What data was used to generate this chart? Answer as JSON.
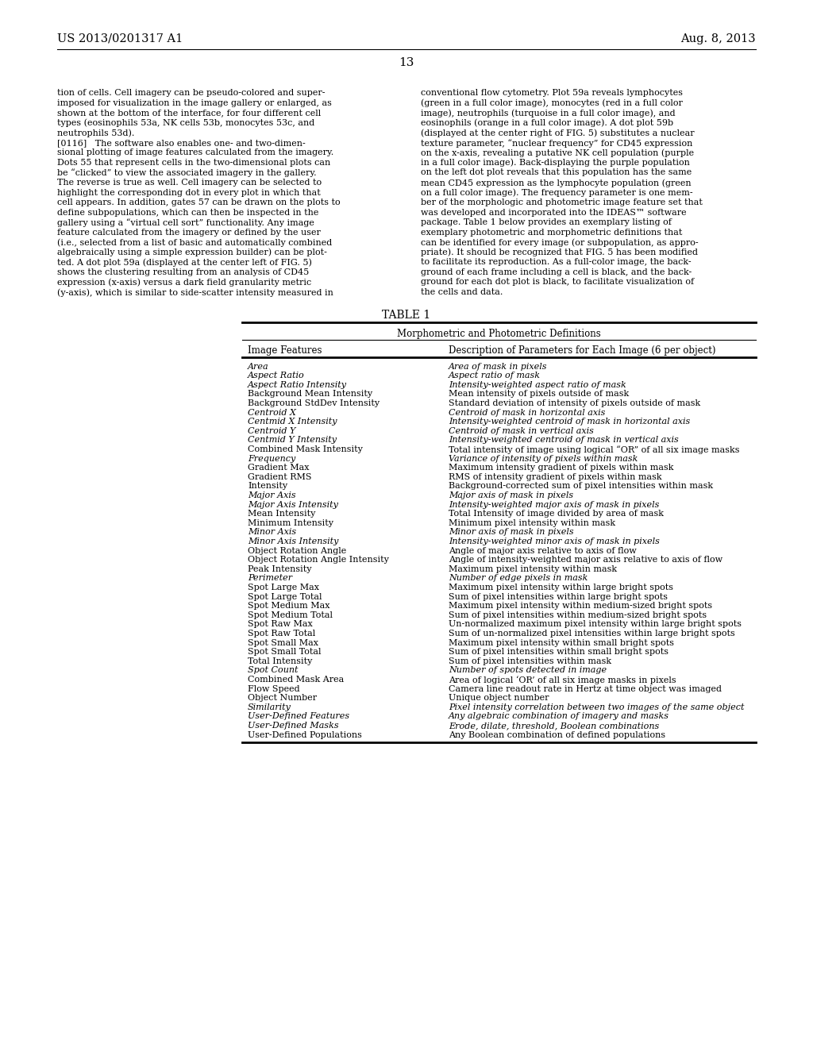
{
  "bg_color": "#ffffff",
  "header_left": "US 2013/0201317 A1",
  "header_right": "Aug. 8, 2013",
  "page_number": "13",
  "para_left_lines": [
    "tion of cells. Cell imagery can be pseudo-colored and super-",
    "imposed for visualization in the image gallery or enlarged, as",
    "shown at the bottom of the interface, for four different cell",
    "types (eosinophils 53a, NK cells 53b, monocytes 53c, and",
    "neutrophils 53d).",
    "[0116]   The software also enables one- and two-dimen-",
    "sional plotting of image features calculated from the imagery.",
    "Dots 55 that represent cells in the two-dimensional plots can",
    "be “clicked” to view the associated imagery in the gallery.",
    "The reverse is true as well. Cell imagery can be selected to",
    "highlight the corresponding dot in every plot in which that",
    "cell appears. In addition, gates 57 can be drawn on the plots to",
    "define subpopulations, which can then be inspected in the",
    "gallery using a “virtual cell sort” functionality. Any image",
    "feature calculated from the imagery or defined by the user",
    "(i.e., selected from a list of basic and automatically combined",
    "algebraically using a simple expression builder) can be plot-",
    "ted. A dot plot 59a (displayed at the center left of FIG. 5)",
    "shows the clustering resulting from an analysis of CD45",
    "expression (x-axis) versus a dark field granularity metric",
    "(y-axis), which is similar to side-scatter intensity measured in"
  ],
  "para_left_bold": [
    [
      3,
      "53a",
      "53b",
      "53c",
      "53d"
    ],
    [
      5,
      "[0116]",
      "55",
      "57",
      "59a"
    ]
  ],
  "para_right_lines": [
    "conventional flow cytometry. Plot 59a reveals lymphocytes",
    "(green in a full color image), monocytes (red in a full color",
    "image), neutrophils (turquoise in a full color image), and",
    "eosinophils (orange in a full color image). A dot plot 59b",
    "(displayed at the center right of FIG. 5) substitutes a nuclear",
    "texture parameter, “nuclear frequency” for CD45 expression",
    "on the x-axis, revealing a putative NK cell population (purple",
    "in a full color image). Back-displaying the purple population",
    "on the left dot plot reveals that this population has the same",
    "mean CD45 expression as the lymphocyte population (green",
    "on a full color image). The frequency parameter is one mem-",
    "ber of the morphologic and photometric image feature set that",
    "was developed and incorporated into the IDEAS™ software",
    "package. Table 1 below provides an exemplary listing of",
    "exemplary photometric and morphometric definitions that",
    "can be identified for every image (or subpopulation, as appro-",
    "priate). It should be recognized that FIG. 5 has been modified",
    "to facilitate its reproduction. As a full-color image, the back-",
    "ground of each frame including a cell is black, and the back-",
    "ground for each dot plot is black, to facilitate visualization of",
    "the cells and data."
  ],
  "table_title": "TABLE 1",
  "table_subtitle": "Morphometric and Photometric Definitions",
  "col1_header": "Image Features",
  "col2_header": "Description of Parameters for Each Image (6 per object)",
  "rows": [
    [
      "Area",
      "italic",
      "Area of mask in pixels",
      "italic"
    ],
    [
      "Aspect Ratio",
      "italic",
      "Aspect ratio of mask",
      "italic"
    ],
    [
      "Aspect Ratio Intensity",
      "italic",
      "Intensity-weighted aspect ratio of mask",
      "italic"
    ],
    [
      "Background Mean Intensity",
      "normal",
      "Mean intensity of pixels outside of mask",
      "normal"
    ],
    [
      "Background StdDev Intensity",
      "normal",
      "Standard deviation of intensity of pixels outside of mask",
      "normal"
    ],
    [
      "Centroid X",
      "italic",
      "Centroid of mask in horizontal axis",
      "italic"
    ],
    [
      "Centmid X Intensity",
      "italic",
      "Intensity-weighted centroid of mask in horizontal axis",
      "italic"
    ],
    [
      "Centroid Y",
      "italic",
      "Centroid of mask in vertical axis",
      "italic"
    ],
    [
      "Centmid Y Intensity",
      "italic",
      "Intensity-weighted centroid of mask in vertical axis",
      "italic"
    ],
    [
      "Combined Mask Intensity",
      "normal",
      "Total intensity of image using logical “OR” of all six image masks",
      "normal"
    ],
    [
      "Frequency",
      "italic",
      "Variance of intensity of pixels within mask",
      "italic"
    ],
    [
      "Gradient Max",
      "normal",
      "Maximum intensity gradient of pixels within mask",
      "normal"
    ],
    [
      "Gradient RMS",
      "normal",
      "RMS of intensity gradient of pixels within mask",
      "normal"
    ],
    [
      "Intensity",
      "normal",
      "Background-corrected sum of pixel intensities within mask",
      "normal"
    ],
    [
      "Major Axis",
      "italic",
      "Major axis of mask in pixels",
      "italic"
    ],
    [
      "Major Axis Intensity",
      "italic",
      "Intensity-weighted major axis of mask in pixels",
      "italic"
    ],
    [
      "Mean Intensity",
      "normal",
      "Total Intensity of image divided by area of mask",
      "normal"
    ],
    [
      "Minimum Intensity",
      "normal",
      "Minimum pixel intensity within mask",
      "normal"
    ],
    [
      "Minor Axis",
      "italic",
      "Minor axis of mask in pixels",
      "italic"
    ],
    [
      "Minor Axis Intensity",
      "italic",
      "Intensity-weighted minor axis of mask in pixels",
      "italic"
    ],
    [
      "Object Rotation Angle",
      "normal",
      "Angle of major axis relative to axis of flow",
      "normal"
    ],
    [
      "Object Rotation Angle Intensity",
      "normal",
      "Angle of intensity-weighted major axis relative to axis of flow",
      "normal"
    ],
    [
      "Peak Intensity",
      "normal",
      "Maximum pixel intensity within mask",
      "normal"
    ],
    [
      "Perimeter",
      "italic",
      "Number of edge pixels in mask",
      "italic"
    ],
    [
      "Spot Large Max",
      "normal",
      "Maximum pixel intensity within large bright spots",
      "normal"
    ],
    [
      "Spot Large Total",
      "normal",
      "Sum of pixel intensities within large bright spots",
      "normal"
    ],
    [
      "Spot Medium Max",
      "normal",
      "Maximum pixel intensity within medium-sized bright spots",
      "normal"
    ],
    [
      "Spot Medium Total",
      "normal",
      "Sum of pixel intensities within medium-sized bright spots",
      "normal"
    ],
    [
      "Spot Raw Max",
      "normal",
      "Un-normalized maximum pixel intensity within large bright spots",
      "normal"
    ],
    [
      "Spot Raw Total",
      "normal",
      "Sum of un-normalized pixel intensities within large bright spots",
      "normal"
    ],
    [
      "Spot Small Max",
      "normal",
      "Maximum pixel intensity within small bright spots",
      "normal"
    ],
    [
      "Spot Small Total",
      "normal",
      "Sum of pixel intensities within small bright spots",
      "normal"
    ],
    [
      "Total Intensity",
      "normal",
      "Sum of pixel intensities within mask",
      "normal"
    ],
    [
      "Spot Count",
      "italic",
      "Number of spots detected in image",
      "italic"
    ],
    [
      "Combined Mask Area",
      "normal",
      "Area of logical ‘OR’ of all six image masks in pixels",
      "normal"
    ],
    [
      "Flow Speed",
      "normal",
      "Camera line readout rate in Hertz at time object was imaged",
      "normal"
    ],
    [
      "Object Number",
      "normal",
      "Unique object number",
      "normal"
    ],
    [
      "Similarity",
      "italic",
      "Pixel intensity correlation between two images of the same object",
      "italic"
    ],
    [
      "User-Defined Features",
      "italic",
      "Any algebraic combination of imagery and masks",
      "italic"
    ],
    [
      "User-Defined Masks",
      "italic",
      "Erode, dilate, threshold, Boolean combinations",
      "italic"
    ],
    [
      "User-Defined Populations",
      "normal",
      "Any Boolean combination of defined populations",
      "normal"
    ]
  ]
}
